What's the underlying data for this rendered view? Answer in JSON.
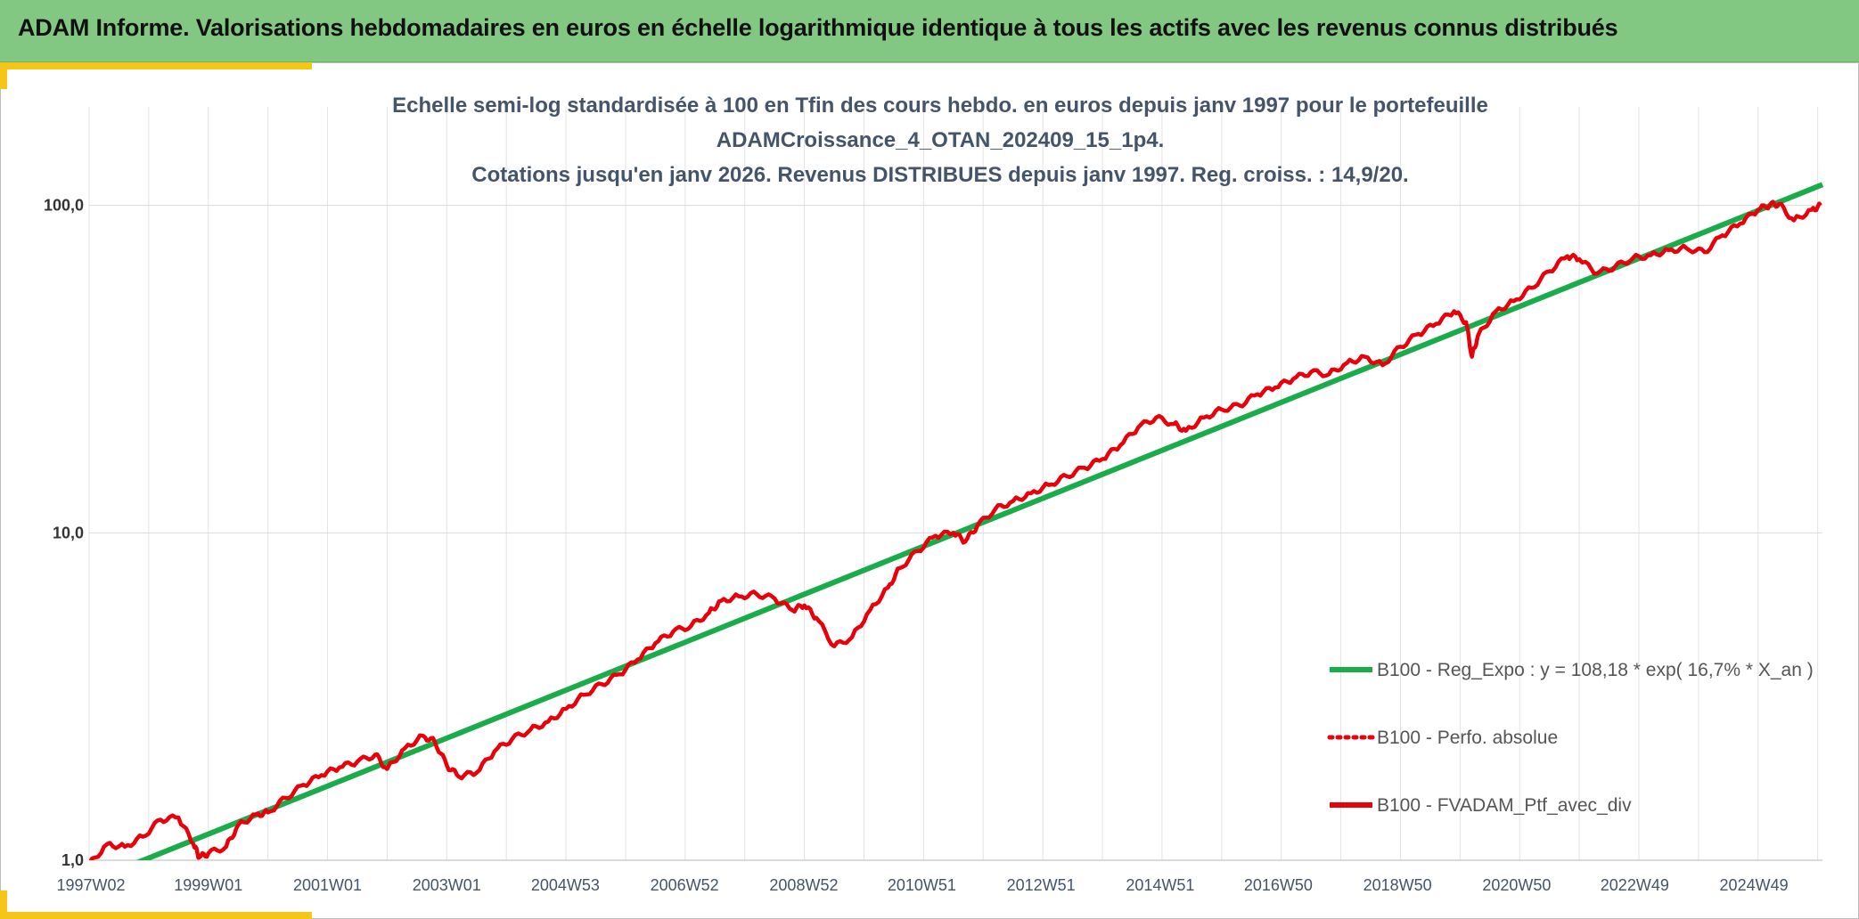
{
  "header": {
    "title": "ADAM Informe. Valorisations hebdomadaires en euros en échelle logarithmique identique à tous les actifs avec les revenus connus distribués"
  },
  "colors": {
    "banner": "#82c882",
    "accent_yellow": "#f5c518",
    "regression": "#1aab4a",
    "portfolio": "#e8000b"
  },
  "chart_data": {
    "type": "line",
    "title_lines": [
      "Echelle semi-log standardisée à 100 en Tfin des cours hebdo. en euros depuis janv 1997 pour le portefeuille",
      "ADAMCroissance_4_OTAN_202409_15_1p4.",
      "Cotations jusqu'en janv 2026. Revenus DISTRIBUES depuis janv 1997. Reg. croiss. : 14,9/20."
    ],
    "y_scale": "log",
    "ylim": [
      1,
      200
    ],
    "xlim": [
      1997.0,
      2026.08
    ],
    "y_ticks": [
      {
        "value": 1,
        "label": "1,0"
      },
      {
        "value": 10,
        "label": "10,0"
      },
      {
        "value": 100,
        "label": "100,0"
      }
    ],
    "x_ticks": [
      {
        "value": 1997.03,
        "label": "1997W02"
      },
      {
        "value": 1999.0,
        "label": "1999W01"
      },
      {
        "value": 2001.0,
        "label": "2001W01"
      },
      {
        "value": 2003.0,
        "label": "2003W01"
      },
      {
        "value": 2004.99,
        "label": "2004W53"
      },
      {
        "value": 2006.99,
        "label": "2006W52"
      },
      {
        "value": 2008.99,
        "label": "2008W52"
      },
      {
        "value": 2010.97,
        "label": "2010W51"
      },
      {
        "value": 2012.97,
        "label": "2012W51"
      },
      {
        "value": 2014.97,
        "label": "2014W51"
      },
      {
        "value": 2016.95,
        "label": "2016W50"
      },
      {
        "value": 2018.95,
        "label": "2018W50"
      },
      {
        "value": 2020.95,
        "label": "2020W50"
      },
      {
        "value": 2022.93,
        "label": "2022W49"
      },
      {
        "value": 2024.93,
        "label": "2024W49"
      }
    ],
    "grid": true,
    "legend_position": "bottom-right",
    "series": [
      {
        "name": "B100 - Reg_Expo : y = 108,18 * exp( 16,7% *  X_an )",
        "style": "solid-green",
        "x": [
          1997.0,
          2026.08
        ],
        "y": [
          0.858,
          115.8
        ]
      },
      {
        "name": "B100 - Perfo. absolue",
        "style": "dotted-red",
        "x": [],
        "y": []
      },
      {
        "name": "B100 - FVADAM_Ptf_avec_div",
        "style": "solid-red",
        "x": [
          1997.0,
          1997.3,
          1997.6,
          1997.9,
          1998.2,
          1998.5,
          1998.75,
          1998.85,
          1999.0,
          1999.3,
          1999.5,
          1999.8,
          2000.0,
          2000.3,
          2000.6,
          2000.9,
          2001.2,
          2001.5,
          2001.8,
          2002.0,
          2002.3,
          2002.6,
          2002.8,
          2003.0,
          2003.2,
          2003.5,
          2003.8,
          2004.1,
          2004.4,
          2004.7,
          2005.0,
          2005.3,
          2005.6,
          2005.9,
          2006.2,
          2006.5,
          2006.8,
          2007.1,
          2007.4,
          2007.6,
          2007.9,
          2008.2,
          2008.5,
          2008.8,
          2009.0,
          2009.2,
          2009.5,
          2009.8,
          2010.1,
          2010.4,
          2010.6,
          2010.9,
          2011.2,
          2011.5,
          2011.7,
          2011.9,
          2012.2,
          2012.5,
          2012.8,
          2013.1,
          2013.4,
          2013.7,
          2014.0,
          2014.3,
          2014.6,
          2014.9,
          2015.2,
          2015.4,
          2015.7,
          2016.0,
          2016.3,
          2016.6,
          2016.9,
          2017.2,
          2017.5,
          2017.8,
          2018.1,
          2018.4,
          2018.7,
          2019.0,
          2019.3,
          2019.6,
          2019.9,
          2020.1,
          2020.2,
          2020.3,
          2020.6,
          2020.9,
          2021.2,
          2021.5,
          2021.8,
          2022.0,
          2022.3,
          2022.6,
          2022.9,
          2023.2,
          2023.5,
          2023.8,
          2024.1,
          2024.4,
          2024.7,
          2025.0,
          2025.2,
          2025.35,
          2025.6,
          2025.9,
          2026.05
        ],
        "y": [
          0.97,
          1.12,
          1.1,
          1.18,
          1.33,
          1.35,
          1.12,
          1.02,
          1.05,
          1.1,
          1.28,
          1.38,
          1.4,
          1.55,
          1.7,
          1.82,
          1.92,
          2.0,
          2.1,
          1.9,
          2.2,
          2.4,
          2.3,
          1.95,
          1.8,
          1.85,
          2.15,
          2.35,
          2.5,
          2.65,
          2.9,
          3.2,
          3.45,
          3.7,
          4.1,
          4.6,
          5.0,
          5.2,
          5.7,
          6.2,
          6.4,
          6.5,
          6.3,
          5.8,
          6.0,
          5.5,
          4.5,
          4.8,
          5.8,
          6.8,
          7.8,
          8.8,
          9.8,
          10.0,
          9.4,
          10.5,
          11.8,
          12.5,
          13.2,
          14.0,
          14.9,
          15.8,
          16.8,
          18.5,
          21.0,
          22.5,
          21.5,
          20.5,
          22.5,
          23.8,
          24.5,
          26.5,
          27.8,
          29.5,
          31.0,
          30.5,
          33.0,
          34.5,
          32.5,
          37.0,
          40.5,
          43.5,
          47.5,
          44.0,
          34.5,
          40.0,
          47.5,
          51.0,
          56.0,
          63.0,
          70.0,
          68.5,
          62.0,
          65.0,
          69.0,
          70.5,
          73.0,
          74.0,
          72.0,
          81.0,
          88.0,
          97.0,
          100.5,
          101.0,
          90.0,
          97.0,
          100.0
        ]
      }
    ]
  }
}
